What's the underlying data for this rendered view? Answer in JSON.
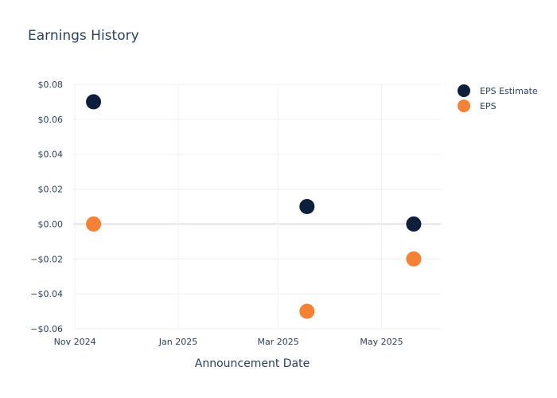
{
  "chart_data": {
    "type": "scatter",
    "title": "Earnings History",
    "xlabel": "Announcement Date",
    "ylabel": "",
    "x_ticks": [
      "2024-11-01",
      "2025-01-01",
      "2025-03-01",
      "2025-05-01"
    ],
    "x_tick_labels": [
      "Nov 2024",
      "Jan 2025",
      "Mar 2025",
      "May 2025"
    ],
    "xlim": [
      "2024-10-31",
      "2025-06-05"
    ],
    "y_ticks": [
      0.08,
      0.06,
      0.04,
      0.02,
      0.0,
      -0.02,
      -0.04,
      -0.06
    ],
    "y_tick_labels": [
      "$0.08",
      "$0.06",
      "$0.04",
      "$0.02",
      "$0.00",
      "−$0.02",
      "−$0.04",
      "−$0.06"
    ],
    "ylim": [
      -0.06,
      0.08
    ],
    "grid": true,
    "legend_position": "top-right",
    "series": [
      {
        "name": "EPS Estimate",
        "color": "#0d1f3c",
        "points": [
          {
            "x": "2024-11-12",
            "y": 0.07
          },
          {
            "x": "2025-03-18",
            "y": 0.01
          },
          {
            "x": "2025-05-20",
            "y": 0.0
          }
        ]
      },
      {
        "name": "EPS",
        "color": "#f58234",
        "points": [
          {
            "x": "2024-11-12",
            "y": 0.0
          },
          {
            "x": "2025-03-18",
            "y": -0.05
          },
          {
            "x": "2025-05-20",
            "y": -0.02
          }
        ]
      }
    ]
  }
}
